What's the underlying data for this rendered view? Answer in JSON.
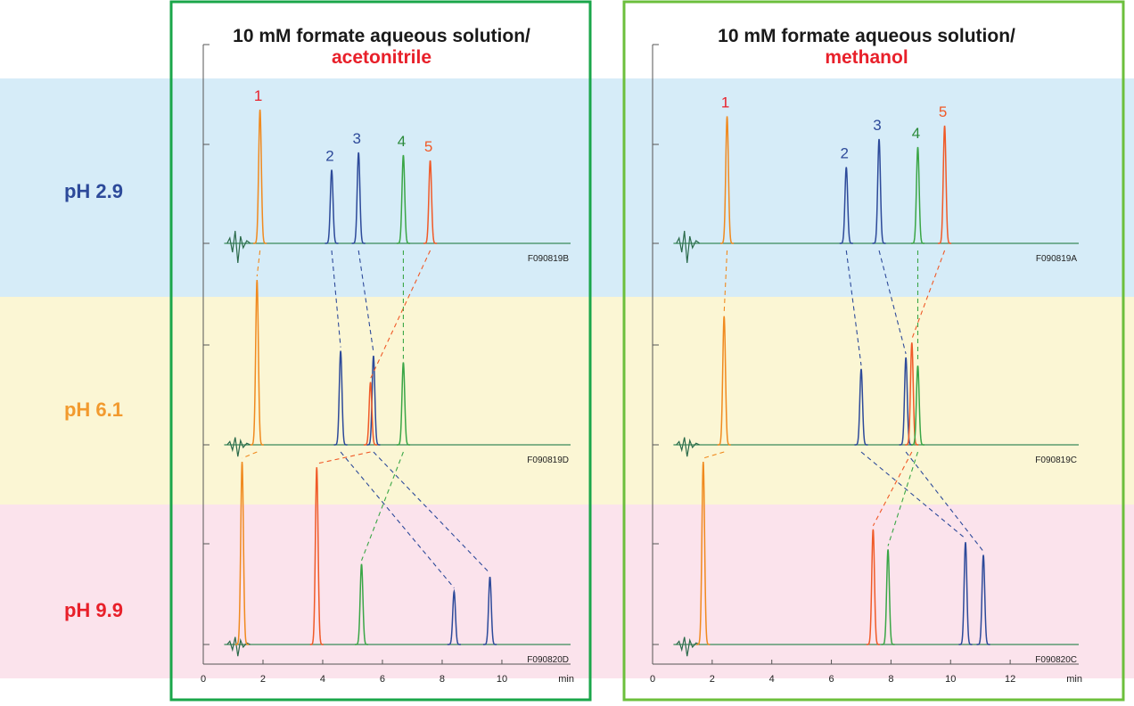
{
  "colors": {
    "band_low": "#d6ecf8",
    "band_mid": "#fbf6d4",
    "band_high": "#fbe3ec",
    "frame_left": "#1aa64a",
    "frame_right": "#6cbf3c",
    "c1": "#f08a1f",
    "c2": "#2d4a9a",
    "c3": "#2d4a9a",
    "c4": "#3aa646",
    "c5": "#f05a28",
    "ph_low": "#2d4a9a",
    "ph_mid": "#f29a2e",
    "ph_high": "#e8202a",
    "peak_label_1": "#e8202a",
    "peak_label_2": "#2d4a9a",
    "peak_label_3": "#2d4a9a",
    "peak_label_4": "#2a8a3a",
    "peak_label_5": "#f05a28",
    "baseline": "#3a8a5a"
  },
  "ph_labels": [
    "pH 2.9",
    "pH 6.1",
    "pH 9.9"
  ],
  "chart_data": [
    {
      "type": "line",
      "title_line1": "10 mM formate aqueous solution/",
      "title_line2": "acetonitrile",
      "xlabel": "min",
      "xlim": [
        0,
        12.3
      ],
      "x_ticks": [
        0,
        2,
        4,
        6,
        8,
        10
      ],
      "series": [
        {
          "code": "F090819B",
          "peaks": [
            {
              "id": 1,
              "rt": 1.9,
              "height": 1.0
            },
            {
              "id": 2,
              "rt": 4.3,
              "height": 0.55
            },
            {
              "id": 3,
              "rt": 5.2,
              "height": 0.68
            },
            {
              "id": 4,
              "rt": 6.7,
              "height": 0.66
            },
            {
              "id": 5,
              "rt": 7.6,
              "height": 0.62
            }
          ],
          "peak_labels": [
            "1",
            "2",
            "3",
            "4",
            "5"
          ]
        },
        {
          "code": "F090819D",
          "peaks": [
            {
              "id": 1,
              "rt": 1.8,
              "height": 1.0
            },
            {
              "id": 2,
              "rt": 4.6,
              "height": 0.57
            },
            {
              "id": 3,
              "rt": 5.7,
              "height": 0.54
            },
            {
              "id": 5,
              "rt": 5.6,
              "height": 0.38
            },
            {
              "id": 4,
              "rt": 6.7,
              "height": 0.5
            }
          ]
        },
        {
          "code": "F090820D",
          "peaks": [
            {
              "id": 1,
              "rt": 1.3,
              "height": 1.0
            },
            {
              "id": 5,
              "rt": 3.8,
              "height": 0.97
            },
            {
              "id": 4,
              "rt": 5.3,
              "height": 0.44
            },
            {
              "id": 2,
              "rt": 8.4,
              "height": 0.29
            },
            {
              "id": 3,
              "rt": 9.6,
              "height": 0.37
            }
          ]
        }
      ]
    },
    {
      "type": "line",
      "title_line1": "10 mM formate aqueous solution/",
      "title_line2": "methanol",
      "xlabel": "min",
      "xlim": [
        0,
        14.3
      ],
      "x_ticks": [
        0,
        2,
        4,
        6,
        8,
        10,
        12
      ],
      "series": [
        {
          "code": "F090819A",
          "peaks": [
            {
              "id": 1,
              "rt": 2.5,
              "height": 0.95
            },
            {
              "id": 2,
              "rt": 6.5,
              "height": 0.57
            },
            {
              "id": 3,
              "rt": 7.6,
              "height": 0.78
            },
            {
              "id": 4,
              "rt": 8.9,
              "height": 0.72
            },
            {
              "id": 5,
              "rt": 9.8,
              "height": 0.88
            }
          ],
          "peak_labels": [
            "1",
            "2",
            "3",
            "4",
            "5"
          ]
        },
        {
          "code": "F090819C",
          "peaks": [
            {
              "id": 1,
              "rt": 2.4,
              "height": 0.78
            },
            {
              "id": 2,
              "rt": 7.0,
              "height": 0.46
            },
            {
              "id": 3,
              "rt": 8.5,
              "height": 0.53
            },
            {
              "id": 5,
              "rt": 8.7,
              "height": 0.62
            },
            {
              "id": 4,
              "rt": 8.9,
              "height": 0.48
            }
          ]
        },
        {
          "code": "F090820C",
          "peaks": [
            {
              "id": 1,
              "rt": 1.7,
              "height": 1.0
            },
            {
              "id": 5,
              "rt": 7.4,
              "height": 0.63
            },
            {
              "id": 4,
              "rt": 7.9,
              "height": 0.52
            },
            {
              "id": 2,
              "rt": 10.5,
              "height": 0.56
            },
            {
              "id": 3,
              "rt": 11.1,
              "height": 0.49
            }
          ]
        }
      ]
    }
  ]
}
